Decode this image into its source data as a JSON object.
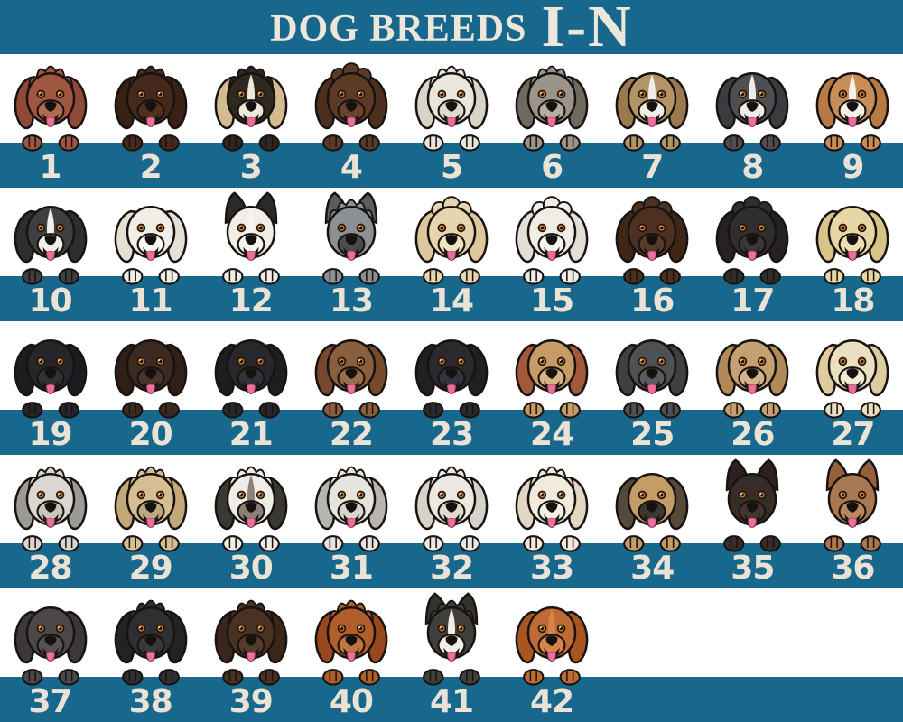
{
  "title": {
    "main": "DOG BREEDS",
    "range": "I-N"
  },
  "colors": {
    "band_teal": "#17688C",
    "text_cream": "#EDE6DA",
    "background_white": "#FFFFFF",
    "outline_ink": "#181310",
    "tongue_pink": "#EC6F9C",
    "tongue_edge": "#B84A74",
    "mouth_dark": "#201714",
    "eye_amber": "#BC722C",
    "nose_black": "#15110D"
  },
  "rows": [
    {
      "dogs": [
        {
          "number": "1",
          "icon": "peeking-dog-icon",
          "fur": "#A05640",
          "ear": "#8F4936",
          "muzzle": "#B06A50",
          "ears": "floppy",
          "coat": "fluffy",
          "blaze": false
        },
        {
          "number": "2",
          "icon": "peeking-dog-icon",
          "fur": "#45291C",
          "ear": "#3A2115",
          "muzzle": "#52301F",
          "ears": "floppy",
          "coat": "fluffy",
          "blaze": false
        },
        {
          "number": "3",
          "icon": "peeking-dog-icon",
          "fur": "#2E2821",
          "ear": "#D2BC90",
          "muzzle": "#EDE8DC",
          "ears": "floppy",
          "coat": "fluffy",
          "blaze": true
        },
        {
          "number": "4",
          "icon": "peeking-dog-icon",
          "fur": "#5C3A28",
          "ear": "#4E2F1F",
          "muzzle": "#6B4430",
          "ears": "floppy",
          "coat": "curly",
          "blaze": false
        },
        {
          "number": "5",
          "icon": "peeking-dog-icon",
          "fur": "#E9E6DE",
          "ear": "#D8D4C8",
          "muzzle": "#DFDACD",
          "ears": "floppy",
          "coat": "fluffy",
          "blaze": false
        },
        {
          "number": "6",
          "icon": "peeking-dog-icon",
          "fur": "#9A948A",
          "ear": "#6E6A60",
          "muzzle": "#B4AEA2",
          "ears": "floppy",
          "coat": "fluffy",
          "blaze": false
        },
        {
          "number": "7",
          "icon": "peeking-dog-icon",
          "fur": "#B29467",
          "ear": "#9A7A4E",
          "muzzle": "#F0EDE6",
          "ears": "floppy",
          "coat": "smooth",
          "blaze": true
        },
        {
          "number": "8",
          "icon": "peeking-dog-icon",
          "fur": "#4E4E52",
          "ear": "#3C3C40",
          "muzzle": "#F0EDE6",
          "ears": "floppy",
          "coat": "smooth",
          "blaze": true
        },
        {
          "number": "9",
          "icon": "peeking-dog-icon",
          "fur": "#C98E58",
          "ear": "#B87A44",
          "muzzle": "#F4F1EA",
          "ears": "floppy",
          "coat": "smooth",
          "blaze": true
        }
      ]
    },
    {
      "dogs": [
        {
          "number": "10",
          "icon": "peeking-dog-icon",
          "fur": "#3F3E40",
          "ear": "#2E2D2F",
          "muzzle": "#F2EFE9",
          "ears": "floppy",
          "coat": "smooth",
          "blaze": true
        },
        {
          "number": "11",
          "icon": "peeking-dog-icon",
          "fur": "#F1EEE7",
          "ear": "#E4E0D6",
          "muzzle": "#FAF8F3",
          "ears": "floppy",
          "coat": "smooth",
          "blaze": false
        },
        {
          "number": "12",
          "icon": "peeking-dog-icon",
          "fur": "#F1EEE7",
          "ear": "#2A2A2A",
          "muzzle": "#F6F4EE",
          "ears": "pointy",
          "coat": "smooth",
          "blaze": true
        },
        {
          "number": "13",
          "icon": "peeking-dog-icon",
          "fur": "#8C8F93",
          "ear": "#5A5C60",
          "muzzle": "#4A4B4E",
          "ears": "pointy",
          "coat": "fluffy",
          "blaze": false
        },
        {
          "number": "14",
          "icon": "peeking-dog-icon",
          "fur": "#E6D5AE",
          "ear": "#DCC89C",
          "muzzle": "#EFE3C4",
          "ears": "floppy",
          "coat": "curly",
          "blaze": false
        },
        {
          "number": "15",
          "icon": "peeking-dog-icon",
          "fur": "#EFEDE5",
          "ear": "#E2DFD5",
          "muzzle": "#F6F4EE",
          "ears": "floppy",
          "coat": "curly",
          "blaze": false
        },
        {
          "number": "16",
          "icon": "peeking-dog-icon",
          "fur": "#4C3120",
          "ear": "#3E2717",
          "muzzle": "#5A3B27",
          "ears": "floppy",
          "coat": "curly",
          "blaze": false
        },
        {
          "number": "17",
          "icon": "peeking-dog-icon",
          "fur": "#302E2D",
          "ear": "#242322",
          "muzzle": "#3A3837",
          "ears": "floppy",
          "coat": "curly",
          "blaze": false
        },
        {
          "number": "18",
          "icon": "peeking-dog-icon",
          "fur": "#E7D7A4",
          "ear": "#D9C488",
          "muzzle": "#EDDFB6",
          "ears": "floppy",
          "coat": "smooth",
          "blaze": false
        }
      ]
    },
    {
      "dogs": [
        {
          "number": "19",
          "icon": "peeking-dog-icon",
          "fur": "#26262A",
          "ear": "#1C1C20",
          "muzzle": "#303036",
          "ears": "floppy",
          "coat": "smooth",
          "blaze": false
        },
        {
          "number": "20",
          "icon": "peeking-dog-icon",
          "fur": "#3C2A21",
          "ear": "#2F1F18",
          "muzzle": "#4A342A",
          "ears": "floppy",
          "coat": "smooth",
          "blaze": false
        },
        {
          "number": "21",
          "icon": "peeking-dog-icon",
          "fur": "#28282C",
          "ear": "#1E1E22",
          "muzzle": "#32323A",
          "ears": "floppy",
          "coat": "smooth",
          "blaze": false
        },
        {
          "number": "22",
          "icon": "peeking-dog-icon",
          "fur": "#8A5F3E",
          "ear": "#74492C",
          "muzzle": "#9A6E4A",
          "ears": "floppy",
          "coat": "smooth",
          "blaze": false
        },
        {
          "number": "23",
          "icon": "peeking-dog-icon",
          "fur": "#2A2A2E",
          "ear": "#202024",
          "muzzle": "#343440",
          "ears": "floppy",
          "coat": "smooth",
          "blaze": false
        },
        {
          "number": "24",
          "icon": "peeking-dog-icon",
          "fur": "#C79B66",
          "ear": "#A2593A",
          "muzzle": "#D8B184",
          "ears": "floppy",
          "coat": "smooth",
          "blaze": false
        },
        {
          "number": "25",
          "icon": "peeking-dog-icon",
          "fur": "#4E5054",
          "ear": "#3E4044",
          "muzzle": "#5A5C62",
          "ears": "floppy",
          "coat": "smooth",
          "blaze": false
        },
        {
          "number": "26",
          "icon": "peeking-dog-icon",
          "fur": "#C5A072",
          "ear": "#B08A58",
          "muzzle": "#D4B488",
          "ears": "floppy",
          "coat": "smooth",
          "blaze": false
        },
        {
          "number": "27",
          "icon": "peeking-dog-icon",
          "fur": "#EADFC0",
          "ear": "#DCCC9E",
          "muzzle": "#F2EAD2",
          "ears": "floppy",
          "coat": "smooth",
          "blaze": false
        }
      ]
    },
    {
      "dogs": [
        {
          "number": "28",
          "icon": "peeking-dog-icon",
          "fur": "#DAD7D0",
          "ear": "#9C9A94",
          "muzzle": "#C8C5BE",
          "ears": "floppy",
          "coat": "fluffy",
          "blaze": false
        },
        {
          "number": "29",
          "icon": "peeking-dog-icon",
          "fur": "#D5BE93",
          "ear": "#C3A878",
          "muzzle": "#BFA87E",
          "ears": "floppy",
          "coat": "fluffy",
          "blaze": false
        },
        {
          "number": "30",
          "icon": "peeking-dog-icon",
          "fur": "#EFEDE6",
          "ear": "#3A3833",
          "muzzle": "#8A8278",
          "ears": "floppy",
          "coat": "fluffy",
          "blaze": true
        },
        {
          "number": "31",
          "icon": "peeking-dog-icon",
          "fur": "#E6E4DE",
          "ear": "#B7B5AF",
          "muzzle": "#D8D5CE",
          "ears": "floppy",
          "coat": "fluffy",
          "blaze": false
        },
        {
          "number": "32",
          "icon": "peeking-dog-icon",
          "fur": "#EBE9E2",
          "ear": "#D5D2CA",
          "muzzle": "#DEDBD3",
          "ears": "floppy",
          "coat": "fluffy",
          "blaze": false
        },
        {
          "number": "33",
          "icon": "peeking-dog-icon",
          "fur": "#F0EBDC",
          "ear": "#E0D8C4",
          "muzzle": "#F4F0E4",
          "ears": "floppy",
          "coat": "fluffy",
          "blaze": false
        },
        {
          "number": "34",
          "icon": "peeking-dog-icon",
          "fur": "#C49C66",
          "ear": "#55493A",
          "muzzle": "#3C3832",
          "ears": "floppy",
          "coat": "smooth",
          "blaze": false
        },
        {
          "number": "35",
          "icon": "peeking-dog-icon",
          "fur": "#382C28",
          "ear": "#2C211E",
          "muzzle": "#44342E",
          "ears": "pointy",
          "coat": "smooth",
          "blaze": false
        },
        {
          "number": "36",
          "icon": "peeking-dog-icon",
          "fur": "#AA7850",
          "ear": "#94603C",
          "muzzle": "#B98860",
          "ears": "pointy",
          "coat": "smooth",
          "blaze": false
        }
      ]
    },
    {
      "dogs": [
        {
          "number": "37",
          "icon": "peeking-dog-icon",
          "fur": "#4C4848",
          "ear": "#3C3838",
          "muzzle": "#585252",
          "ears": "floppy",
          "coat": "smooth",
          "blaze": false
        },
        {
          "number": "38",
          "icon": "peeking-dog-icon",
          "fur": "#2F2E30",
          "ear": "#232224",
          "muzzle": "#3A393B",
          "ears": "floppy",
          "coat": "fluffy",
          "blaze": false
        },
        {
          "number": "39",
          "icon": "peeking-dog-icon",
          "fur": "#493124",
          "ear": "#3A261B",
          "muzzle": "#573B2C",
          "ears": "floppy",
          "coat": "fluffy",
          "blaze": false
        },
        {
          "number": "40",
          "icon": "peeking-dog-icon",
          "fur": "#B05E2C",
          "ear": "#97481E",
          "muzzle": "#C27440",
          "ears": "floppy",
          "coat": "fluffy",
          "blaze": false
        },
        {
          "number": "41",
          "icon": "peeking-dog-icon",
          "fur": "#413F3B",
          "ear": "#34322E",
          "muzzle": "#EFEDE6",
          "ears": "pointy",
          "coat": "fluffy",
          "blaze": true
        },
        {
          "number": "42",
          "icon": "peeking-dog-icon",
          "fur": "#C06B35",
          "ear": "#A85523",
          "muzzle": "#D8834A",
          "ears": "floppy",
          "coat": "smooth",
          "blaze": true
        }
      ]
    }
  ]
}
